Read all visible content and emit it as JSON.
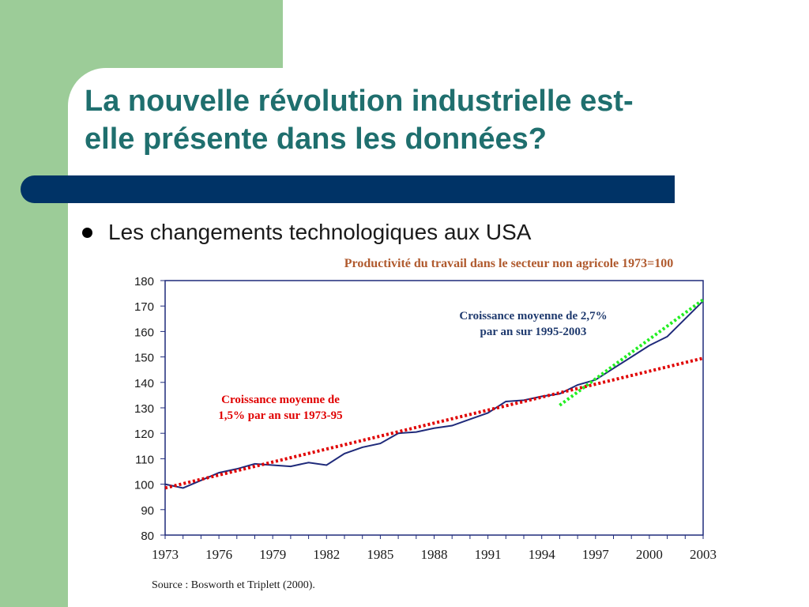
{
  "slide": {
    "title_line1": "La nouvelle révolution industrielle est-",
    "title_line2": "elle présente dans les données?",
    "bullet": "Les changements technologiques aux USA"
  },
  "colors": {
    "green_block": "#9ccc98",
    "title": "#1f6f6e",
    "divider": "#003366",
    "chart_title": "#b05a2e",
    "line": "#1f2a7a",
    "trend_red": "#e00000",
    "trend_green": "#22ee22",
    "annotation_blue": "#1f3a6e",
    "annotation_red": "#e00000"
  },
  "chart_data": {
    "type": "line",
    "title": "Productivité du travail dans le secteur non agricole 1973=100",
    "xlim": [
      1973,
      2003
    ],
    "ylim": [
      80,
      180
    ],
    "yticks": [
      80,
      90,
      100,
      110,
      120,
      130,
      140,
      150,
      160,
      170,
      180
    ],
    "xticks": [
      1973,
      1976,
      1979,
      1982,
      1985,
      1988,
      1991,
      1994,
      1997,
      2000,
      2003
    ],
    "series": [
      {
        "name": "",
        "style": "solid",
        "x": [
          1973,
          1974,
          1975,
          1976,
          1977,
          1978,
          1979,
          1980,
          1981,
          1982,
          1983,
          1984,
          1985,
          1986,
          1987,
          1988,
          1989,
          1990,
          1991,
          1992,
          1993,
          1994,
          1995,
          1996,
          1997,
          1998,
          1999,
          2000,
          2001,
          2002,
          2003
        ],
        "y": [
          100,
          98.5,
          101.5,
          104.5,
          106,
          108,
          107.5,
          107,
          108.5,
          107.5,
          112,
          114.5,
          116,
          120,
          120.5,
          122,
          123,
          125.5,
          128,
          132.5,
          133,
          134.5,
          135.5,
          139,
          141,
          145.5,
          150,
          154.5,
          158,
          165,
          172
        ]
      },
      {
        "name": "",
        "style": "dotted-trend",
        "x": [
          1973,
          2003
        ],
        "y": [
          98.5,
          149.5
        ]
      },
      {
        "name": "",
        "style": "dotted-trend",
        "x": [
          1995,
          2003
        ],
        "y": [
          131,
          172.5
        ]
      }
    ],
    "annotations": [
      {
        "text_line1": "Croissance moyenne de 2,7%",
        "text_line2": "par an sur 1995-2003"
      },
      {
        "text_line1": "Croissance moyenne de",
        "text_line2": "1,5% par an sur 1973-95"
      }
    ],
    "source": "Source : Bosworth et Triplett (2000)."
  }
}
